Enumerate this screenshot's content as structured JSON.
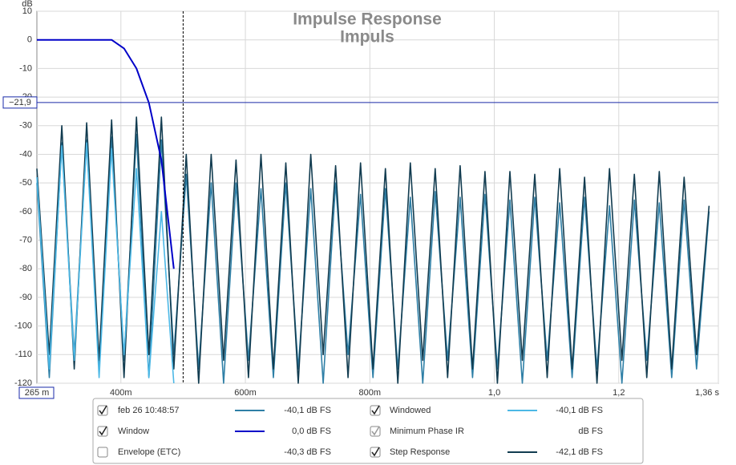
{
  "chart_data": {
    "type": "line",
    "title": "Impulse Response",
    "subtitle": "Impuls",
    "y_label": "dB",
    "ylim": [
      -120,
      10
    ],
    "yticks": [
      10,
      0,
      -10,
      -20,
      -30,
      -40,
      -50,
      -60,
      -70,
      -80,
      -90,
      -100,
      -110,
      -120
    ],
    "xlim": [
      0.265,
      1.36
    ],
    "xticks": [
      {
        "value": 0.265,
        "label": "265 m"
      },
      {
        "value": 0.4,
        "label": "400m"
      },
      {
        "value": 0.6,
        "label": "600m"
      },
      {
        "value": 0.8,
        "label": "800m"
      },
      {
        "value": 1.0,
        "label": "1,0"
      },
      {
        "value": 1.2,
        "label": "1,2"
      },
      {
        "value": 1.36,
        "label": "1,36 s"
      }
    ],
    "grid": true,
    "cursor": {
      "x": 0.5,
      "y": -21.9,
      "label": "−21,9"
    },
    "x": [
      0.265,
      0.285,
      0.305,
      0.325,
      0.345,
      0.365,
      0.385,
      0.405,
      0.425,
      0.445,
      0.465,
      0.485,
      0.505,
      0.525,
      0.545,
      0.565,
      0.585,
      0.605,
      0.625,
      0.645,
      0.665,
      0.685,
      0.705,
      0.725,
      0.745,
      0.765,
      0.785,
      0.805,
      0.825,
      0.845,
      0.865,
      0.885,
      0.905,
      0.925,
      0.945,
      0.965,
      0.985,
      1.005,
      1.025,
      1.045,
      1.065,
      1.085,
      1.105,
      1.125,
      1.145,
      1.165,
      1.185,
      1.205,
      1.225,
      1.245,
      1.265,
      1.285,
      1.305,
      1.325,
      1.345
    ],
    "series": [
      {
        "name": "feb 26 10:48:57",
        "color": "#2e7fa6",
        "line": true,
        "checked": true,
        "reading": "-40,1 dB FS",
        "values": [
          -50,
          -118,
          -36,
          -110,
          -35,
          -115,
          -34,
          -112,
          -33,
          -118,
          -35,
          -110,
          -47,
          -115,
          -50,
          -120,
          -50,
          -112,
          -52,
          -118,
          -50,
          -115,
          -52,
          -120,
          -50,
          -110,
          -54,
          -118,
          -52,
          -115,
          -55,
          -120,
          -53,
          -112,
          -55,
          -118,
          -54,
          -115,
          -56,
          -120,
          -55,
          -112,
          -57,
          -118,
          -55,
          -115,
          -58,
          -120,
          -56,
          -112,
          -57,
          -118,
          -56,
          -115,
          -60
        ]
      },
      {
        "name": "Windowed",
        "color": "#4cb8e6",
        "line": true,
        "checked": true,
        "reading": "-40,1 dB FS",
        "values": [
          -48,
          -115,
          -37,
          -112,
          -36,
          -118,
          -38,
          -110,
          -45,
          -118,
          -60,
          -120,
          null,
          null,
          null,
          null,
          null,
          null,
          null,
          null,
          null,
          null,
          null,
          null,
          null,
          null,
          null,
          null,
          null,
          null,
          null,
          null,
          null,
          null,
          null,
          null,
          null,
          null,
          null,
          null,
          null,
          null,
          null,
          null,
          null,
          null,
          null,
          null,
          null,
          null,
          null,
          null,
          null,
          null,
          null
        ]
      },
      {
        "name": "Window",
        "color": "#0000c8",
        "line": true,
        "checked": true,
        "reading": "0,0 dB FS",
        "values": [
          0,
          0,
          0,
          0,
          0,
          0,
          0,
          -3,
          -10,
          -22,
          -42,
          -80,
          null,
          null,
          null,
          null,
          null,
          null,
          null,
          null,
          null,
          null,
          null,
          null,
          null,
          null,
          null,
          null,
          null,
          null,
          null,
          null,
          null,
          null,
          null,
          null,
          null,
          null,
          null,
          null,
          null,
          null,
          null,
          null,
          null,
          null,
          null,
          null,
          null,
          null,
          null,
          null,
          null,
          null,
          null
        ]
      },
      {
        "name": "Minimum Phase IR",
        "color": "#9a9a9a",
        "line": false,
        "checked": true,
        "reading": "dB FS"
      },
      {
        "name": "Envelope (ETC)",
        "color": "#3a6f90",
        "line": false,
        "checked": false,
        "reading": "-40,3 dB FS"
      },
      {
        "name": "Step Response",
        "color": "#123c50",
        "line": true,
        "checked": true,
        "reading": "-42,1 dB FS",
        "values": [
          -45,
          -110,
          -30,
          -115,
          -29,
          -112,
          -28,
          -118,
          -27,
          -110,
          -27,
          -115,
          -40,
          -120,
          -40,
          -112,
          -42,
          -118,
          -40,
          -115,
          -43,
          -120,
          -40,
          -110,
          -44,
          -118,
          -43,
          -115,
          -45,
          -120,
          -43,
          -112,
          -45,
          -118,
          -44,
          -115,
          -46,
          -120,
          -46,
          -112,
          -47,
          -118,
          -45,
          -115,
          -48,
          -120,
          -45,
          -112,
          -47,
          -118,
          -46,
          -115,
          -48,
          -110,
          -58
        ]
      }
    ]
  }
}
